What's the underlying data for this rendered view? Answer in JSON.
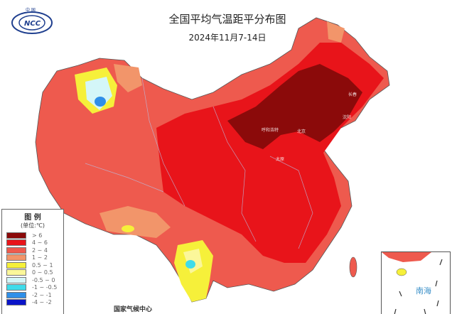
{
  "header": {
    "title": "全国平均气温距平分布图",
    "subtitle": "2024年11月7-14日",
    "logo_text": "中国 NCC"
  },
  "legend": {
    "heading": "图 例",
    "unit": "(单位:℃)",
    "items": [
      {
        "label": "> 6",
        "color": "#8b0a0a"
      },
      {
        "label": "4 ~ 6",
        "color": "#e8141a"
      },
      {
        "label": "2 ~ 4",
        "color": "#ee5a4e"
      },
      {
        "label": "1 ~ 2",
        "color": "#f2956a"
      },
      {
        "label": "0.5 ~ 1",
        "color": "#f6f03a"
      },
      {
        "label": "0 ~ 0.5",
        "color": "#fbf79a"
      },
      {
        "label": "-0.5 ~ 0",
        "color": "#d4f6f8"
      },
      {
        "label": "-1 ~ -0.5",
        "color": "#3fdcea"
      },
      {
        "label": "-2 ~ -1",
        "color": "#2f8fe8"
      },
      {
        "label": "-4 ~ -2",
        "color": "#0a14c8"
      }
    ]
  },
  "footer": {
    "agency": "国家气候中心"
  },
  "inset": {
    "label": "南海"
  },
  "cities": [
    "长春",
    "沈阳",
    "呼和浩特",
    "北京",
    "太原"
  ]
}
